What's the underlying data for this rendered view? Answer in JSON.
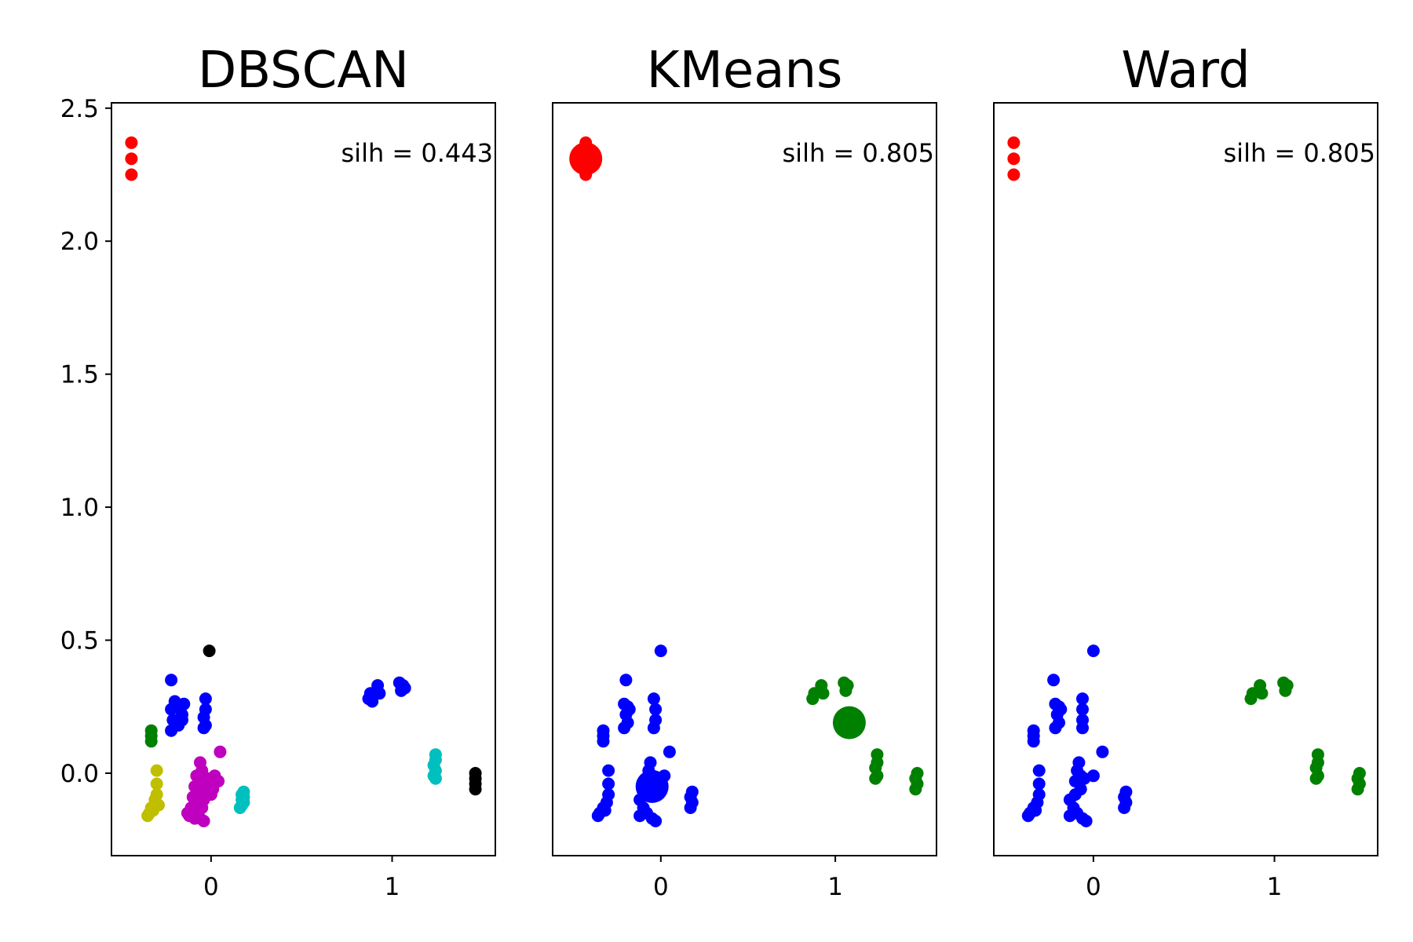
{
  "chart_data": [
    {
      "type": "scatter",
      "title": "DBSCAN",
      "annotation": "silh = 0.443",
      "xlim": [
        -0.55,
        1.57
      ],
      "ylim": [
        -0.31,
        2.52
      ],
      "xticks": [
        {
          "value": 0,
          "label": "0"
        },
        {
          "value": 1,
          "label": "1"
        }
      ],
      "yticks": [
        {
          "value": 0.0,
          "label": "0.0"
        },
        {
          "value": 0.5,
          "label": "0.5"
        },
        {
          "value": 1.0,
          "label": "1.0"
        },
        {
          "value": 1.5,
          "label": "1.5"
        },
        {
          "value": 2.0,
          "label": "2.0"
        },
        {
          "value": 2.5,
          "label": "2.5"
        }
      ],
      "show_yticks": true,
      "grid": false,
      "series": [
        {
          "color": "#ff0000",
          "points": [
            [
              -0.44,
              2.37
            ],
            [
              -0.44,
              2.31
            ],
            [
              -0.44,
              2.25
            ]
          ]
        },
        {
          "color": "#0000ff",
          "points": [
            [
              -0.22,
              0.35
            ],
            [
              -0.2,
              0.27
            ],
            [
              -0.22,
              0.24
            ],
            [
              -0.19,
              0.26
            ],
            [
              -0.17,
              0.24
            ],
            [
              -0.16,
              0.22
            ],
            [
              -0.21,
              0.2
            ],
            [
              -0.18,
              0.18
            ],
            [
              -0.22,
              0.16
            ],
            [
              -0.16,
              0.2
            ],
            [
              -0.15,
              0.26
            ],
            [
              -0.03,
              0.28
            ],
            [
              -0.03,
              0.24
            ],
            [
              -0.04,
              0.21
            ],
            [
              -0.03,
              0.18
            ],
            [
              -0.04,
              0.17
            ],
            [
              0.87,
              0.28
            ],
            [
              0.88,
              0.3
            ],
            [
              0.89,
              0.27
            ],
            [
              0.92,
              0.33
            ],
            [
              0.93,
              0.3
            ],
            [
              1.04,
              0.34
            ],
            [
              1.05,
              0.31
            ],
            [
              1.06,
              0.33
            ],
            [
              1.07,
              0.32
            ]
          ]
        },
        {
          "color": "#008000",
          "points": [
            [
              -0.33,
              0.16
            ],
            [
              -0.33,
              0.14
            ],
            [
              -0.33,
              0.12
            ]
          ]
        },
        {
          "color": "#bfbf00",
          "points": [
            [
              -0.3,
              0.01
            ],
            [
              -0.3,
              -0.04
            ],
            [
              -0.3,
              -0.08
            ],
            [
              -0.31,
              -0.1
            ],
            [
              -0.29,
              -0.12
            ],
            [
              -0.33,
              -0.13
            ],
            [
              -0.34,
              -0.15
            ],
            [
              -0.32,
              -0.14
            ],
            [
              -0.35,
              -0.16
            ]
          ]
        },
        {
          "color": "#bf00bf",
          "points": [
            [
              -0.06,
              0.04
            ],
            [
              0.05,
              0.08
            ],
            [
              -0.05,
              0.01
            ],
            [
              -0.08,
              -0.01
            ],
            [
              -0.05,
              -0.03
            ],
            [
              -0.02,
              -0.02
            ],
            [
              0.02,
              -0.01
            ],
            [
              0.04,
              -0.03
            ],
            [
              -0.09,
              -0.05
            ],
            [
              -0.06,
              -0.07
            ],
            [
              -0.03,
              -0.05
            ],
            [
              0.01,
              -0.06
            ],
            [
              -0.1,
              -0.09
            ],
            [
              -0.07,
              -0.11
            ],
            [
              -0.04,
              -0.1
            ],
            [
              -0.11,
              -0.13
            ],
            [
              -0.08,
              -0.14
            ],
            [
              -0.05,
              -0.13
            ],
            [
              -0.12,
              -0.16
            ],
            [
              -0.09,
              -0.17
            ],
            [
              -0.06,
              -0.17
            ],
            [
              -0.04,
              -0.18
            ],
            [
              -0.13,
              -0.15
            ],
            [
              0.0,
              -0.08
            ]
          ]
        },
        {
          "color": "#00bfbf",
          "points": [
            [
              0.18,
              -0.07
            ],
            [
              0.17,
              -0.08
            ],
            [
              0.18,
              -0.09
            ],
            [
              0.17,
              -0.1
            ],
            [
              0.18,
              -0.11
            ],
            [
              0.17,
              -0.12
            ],
            [
              0.16,
              -0.13
            ]
          ]
        },
        {
          "color": "#00bfbf",
          "points": [
            [
              1.24,
              0.07
            ],
            [
              1.24,
              0.05
            ],
            [
              1.23,
              0.03
            ],
            [
              1.24,
              0.01
            ],
            [
              1.23,
              -0.01
            ],
            [
              1.24,
              -0.02
            ]
          ]
        },
        {
          "color": "#000000",
          "points": [
            [
              -0.01,
              0.46
            ],
            [
              1.46,
              0.0
            ],
            [
              1.46,
              -0.02
            ],
            [
              1.46,
              -0.04
            ],
            [
              1.46,
              -0.06
            ]
          ]
        }
      ],
      "centroids": []
    },
    {
      "type": "scatter",
      "title": "KMeans",
      "annotation": "silh = 0.805",
      "xlim": [
        -0.62,
        1.58
      ],
      "ylim": [
        -0.31,
        2.52
      ],
      "xticks": [
        {
          "value": 0,
          "label": "0"
        },
        {
          "value": 1,
          "label": "1"
        }
      ],
      "yticks": [],
      "show_yticks": false,
      "grid": false,
      "series": [
        {
          "color": "#ff0000",
          "points": [
            [
              -0.43,
              2.37
            ],
            [
              -0.43,
              2.31
            ],
            [
              -0.43,
              2.25
            ]
          ]
        },
        {
          "color": "#0000ff",
          "points": [
            [
              0.0,
              0.46
            ],
            [
              -0.2,
              0.35
            ],
            [
              -0.21,
              0.26
            ],
            [
              -0.19,
              0.25
            ],
            [
              -0.18,
              0.24
            ],
            [
              -0.2,
              0.22
            ],
            [
              -0.19,
              0.19
            ],
            [
              -0.21,
              0.17
            ],
            [
              -0.04,
              0.28
            ],
            [
              -0.03,
              0.24
            ],
            [
              -0.03,
              0.2
            ],
            [
              -0.04,
              0.17
            ],
            [
              -0.33,
              0.16
            ],
            [
              -0.33,
              0.14
            ],
            [
              -0.33,
              0.12
            ],
            [
              0.05,
              0.08
            ],
            [
              -0.3,
              0.01
            ],
            [
              -0.06,
              0.04
            ],
            [
              -0.07,
              0.01
            ],
            [
              -0.05,
              -0.01
            ],
            [
              -0.09,
              -0.03
            ],
            [
              -0.03,
              -0.02
            ],
            [
              0.02,
              -0.01
            ],
            [
              -0.06,
              -0.06
            ],
            [
              -0.09,
              -0.08
            ],
            [
              -0.12,
              -0.1
            ],
            [
              -0.1,
              -0.13
            ],
            [
              -0.08,
              -0.15
            ],
            [
              -0.05,
              -0.17
            ],
            [
              -0.12,
              -0.16
            ],
            [
              -0.03,
              -0.18
            ],
            [
              -0.3,
              -0.04
            ],
            [
              -0.3,
              -0.08
            ],
            [
              -0.31,
              -0.11
            ],
            [
              -0.33,
              -0.13
            ],
            [
              -0.35,
              -0.15
            ],
            [
              -0.36,
              -0.16
            ],
            [
              -0.32,
              -0.14
            ],
            [
              0.18,
              -0.07
            ],
            [
              0.17,
              -0.09
            ],
            [
              0.18,
              -0.11
            ],
            [
              0.17,
              -0.13
            ]
          ]
        },
        {
          "color": "#008000",
          "points": [
            [
              0.87,
              0.28
            ],
            [
              0.88,
              0.3
            ],
            [
              0.92,
              0.33
            ],
            [
              0.93,
              0.3
            ],
            [
              1.05,
              0.34
            ],
            [
              1.06,
              0.31
            ],
            [
              1.07,
              0.33
            ],
            [
              1.24,
              0.07
            ],
            [
              1.24,
              0.04
            ],
            [
              1.23,
              0.02
            ],
            [
              1.24,
              -0.01
            ],
            [
              1.23,
              -0.02
            ],
            [
              1.47,
              0.0
            ],
            [
              1.46,
              -0.02
            ],
            [
              1.47,
              -0.04
            ],
            [
              1.46,
              -0.06
            ]
          ]
        }
      ],
      "centroids": [
        {
          "color": "#ff0000",
          "x": -0.43,
          "y": 2.31
        },
        {
          "color": "#0000ff",
          "x": -0.05,
          "y": -0.05
        },
        {
          "color": "#008000",
          "x": 1.08,
          "y": 0.19
        }
      ]
    },
    {
      "type": "scatter",
      "title": "Ward",
      "annotation": "silh = 0.805",
      "xlim": [
        -0.55,
        1.57
      ],
      "ylim": [
        -0.31,
        2.52
      ],
      "xticks": [
        {
          "value": 0,
          "label": "0"
        },
        {
          "value": 1,
          "label": "1"
        }
      ],
      "yticks": [],
      "show_yticks": false,
      "grid": false,
      "series": [
        {
          "color": "#ff0000",
          "points": [
            [
              -0.44,
              2.37
            ],
            [
              -0.44,
              2.31
            ],
            [
              -0.44,
              2.25
            ]
          ]
        },
        {
          "color": "#0000ff",
          "points": [
            [
              0.0,
              0.46
            ],
            [
              -0.22,
              0.35
            ],
            [
              -0.21,
              0.26
            ],
            [
              -0.19,
              0.25
            ],
            [
              -0.18,
              0.24
            ],
            [
              -0.2,
              0.22
            ],
            [
              -0.19,
              0.19
            ],
            [
              -0.21,
              0.17
            ],
            [
              -0.06,
              0.28
            ],
            [
              -0.06,
              0.24
            ],
            [
              -0.06,
              0.2
            ],
            [
              -0.06,
              0.17
            ],
            [
              -0.33,
              0.16
            ],
            [
              -0.33,
              0.14
            ],
            [
              -0.33,
              0.12
            ],
            [
              0.05,
              0.08
            ],
            [
              -0.3,
              0.01
            ],
            [
              -0.08,
              0.04
            ],
            [
              -0.09,
              0.01
            ],
            [
              -0.07,
              -0.01
            ],
            [
              -0.1,
              -0.03
            ],
            [
              -0.05,
              -0.02
            ],
            [
              0.0,
              -0.01
            ],
            [
              -0.07,
              -0.06
            ],
            [
              -0.1,
              -0.08
            ],
            [
              -0.13,
              -0.1
            ],
            [
              -0.11,
              -0.13
            ],
            [
              -0.09,
              -0.15
            ],
            [
              -0.06,
              -0.17
            ],
            [
              -0.13,
              -0.16
            ],
            [
              -0.04,
              -0.18
            ],
            [
              -0.3,
              -0.04
            ],
            [
              -0.3,
              -0.08
            ],
            [
              -0.31,
              -0.11
            ],
            [
              -0.33,
              -0.13
            ],
            [
              -0.35,
              -0.15
            ],
            [
              -0.36,
              -0.16
            ],
            [
              -0.32,
              -0.14
            ],
            [
              0.18,
              -0.07
            ],
            [
              0.17,
              -0.09
            ],
            [
              0.18,
              -0.11
            ],
            [
              0.17,
              -0.13
            ]
          ]
        },
        {
          "color": "#008000",
          "points": [
            [
              0.87,
              0.28
            ],
            [
              0.88,
              0.3
            ],
            [
              0.92,
              0.33
            ],
            [
              0.93,
              0.3
            ],
            [
              1.05,
              0.34
            ],
            [
              1.06,
              0.31
            ],
            [
              1.07,
              0.33
            ],
            [
              1.24,
              0.07
            ],
            [
              1.24,
              0.04
            ],
            [
              1.23,
              0.02
            ],
            [
              1.24,
              -0.01
            ],
            [
              1.23,
              -0.02
            ],
            [
              1.47,
              0.0
            ],
            [
              1.46,
              -0.02
            ],
            [
              1.47,
              -0.04
            ],
            [
              1.46,
              -0.06
            ]
          ]
        }
      ],
      "centroids": []
    }
  ]
}
